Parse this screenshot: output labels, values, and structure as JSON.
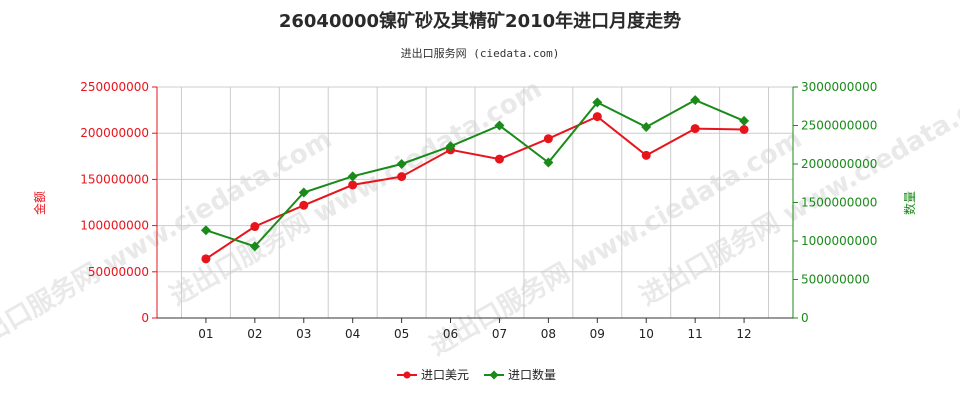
{
  "header": {
    "title": "26040000镍矿砂及其精矿2010年进口月度走势",
    "subtitle": "进出口服务网 (ciedata.com)"
  },
  "watermark": "进出口服务网 www.ciedata.com",
  "colors": {
    "left_series": "#e8141c",
    "right_series": "#1a8a1a",
    "grid": "#cccccc"
  },
  "chart_data": {
    "type": "line",
    "title": "26040000镍矿砂及其精矿2010年进口月度走势",
    "subtitle": "进出口服务网 (ciedata.com)",
    "categories": [
      "01",
      "02",
      "03",
      "04",
      "05",
      "06",
      "07",
      "08",
      "09",
      "10",
      "11",
      "12"
    ],
    "y_left": {
      "label": "金额",
      "range": [
        0,
        250000000
      ],
      "ticks": [
        "0",
        "50000000",
        "100000000",
        "150000000",
        "200000000",
        "250000000"
      ]
    },
    "y_right": {
      "label": "数量",
      "range": [
        0,
        3000000000
      ],
      "ticks": [
        "0",
        "500000000",
        "1000000000",
        "1500000000",
        "2000000000",
        "2500000000",
        "3000000000"
      ]
    },
    "grid": true,
    "legend_position": "bottom",
    "series": [
      {
        "name": "进口美元",
        "axis": "left",
        "color": "#e8141c",
        "values": [
          64000000,
          99000000,
          122000000,
          144000000,
          153000000,
          182000000,
          172000000,
          194000000,
          218000000,
          176000000,
          205000000,
          204000000
        ]
      },
      {
        "name": "进口数量",
        "axis": "right",
        "color": "#1a8a1a",
        "values": [
          1140000000,
          930000000,
          1630000000,
          1840000000,
          2000000000,
          2230000000,
          2500000000,
          2020000000,
          2800000000,
          2480000000,
          2830000000,
          2560000000
        ]
      }
    ]
  }
}
